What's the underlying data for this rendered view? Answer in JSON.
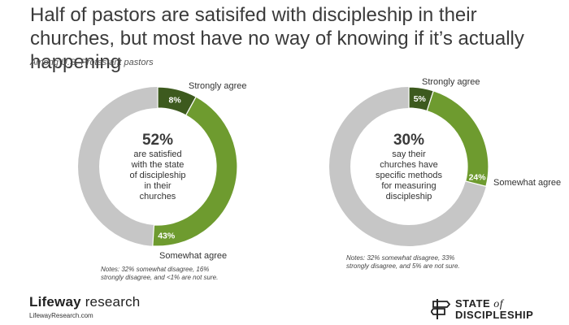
{
  "title": "Half of pastors are satisifed with discipleship in their churches, but most have no way of knowing if it’s actually happening",
  "subtitle": "Among U.S. Protestant pastors",
  "colors": {
    "strongly_agree": "#3d5a1e",
    "somewhat_agree": "#6e9b2f",
    "other": "#c6c6c6"
  },
  "chart_data": [
    {
      "type": "pie",
      "variant": "donut",
      "categories": [
        "Strongly agree",
        "Somewhat agree"
      ],
      "values": [
        8,
        43
      ],
      "value_labels": [
        "8%",
        "43%"
      ],
      "remainder": 49,
      "center": {
        "value": "52%",
        "lines": [
          "are satisfied",
          "with the state",
          "of discipleship",
          "in their",
          "churches"
        ]
      },
      "note": "Notes: 32% somewhat disagree, 16% strongly disagree, and <1% are not sure."
    },
    {
      "type": "pie",
      "variant": "donut",
      "categories": [
        "Strongly agree",
        "Somewhat agree"
      ],
      "values": [
        5,
        24
      ],
      "value_labels": [
        "5%",
        "24%"
      ],
      "remainder": 71,
      "center": {
        "value": "30%",
        "lines": [
          "say their",
          "churches have",
          "specific methods",
          "for measuring",
          "discipleship"
        ]
      },
      "note": "Notes: 32% somewhat disagree, 33% strongly disagree, and 5% are not sure."
    }
  ],
  "footer": {
    "brand_bold": "Lifeway",
    "brand_rest": " research",
    "url": "LifewayResearch.com",
    "sod_line1_a": "STATE ",
    "sod_line1_b": "of",
    "sod_line2": "DISCIPLESHIP"
  }
}
